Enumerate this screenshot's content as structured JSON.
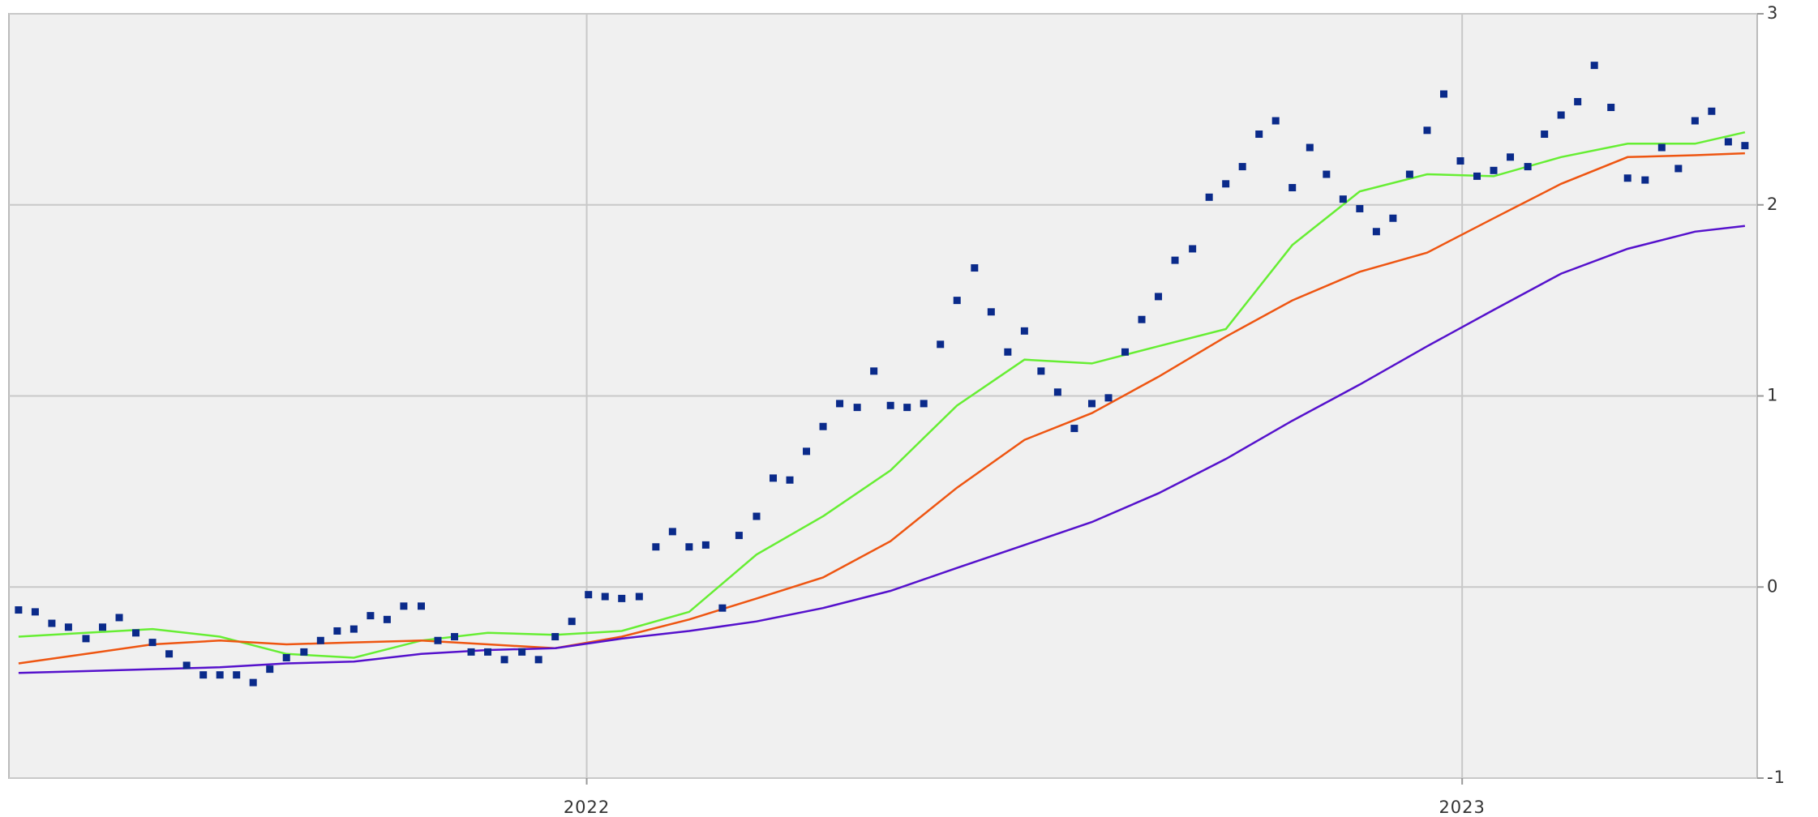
{
  "chart_data": {
    "type": "scatter",
    "xlim": [
      2021.34,
      2023.337
    ],
    "xticks": [
      2022,
      2023
    ],
    "ylim": [
      -1,
      3
    ],
    "yticks": [
      -1,
      0,
      1,
      2,
      3
    ],
    "grid": true,
    "series": [
      {
        "type": "scatter",
        "color": "#0a2a8a",
        "x": [
          2021.351,
          2021.37,
          2021.389,
          2021.408,
          2021.428,
          2021.447,
          2021.466,
          2021.485,
          2021.504,
          2021.523,
          2021.543,
          2021.562,
          2021.581,
          2021.6,
          2021.619,
          2021.638,
          2021.657,
          2021.677,
          2021.696,
          2021.715,
          2021.734,
          2021.753,
          2021.772,
          2021.791,
          2021.811,
          2021.83,
          2021.849,
          2021.868,
          2021.887,
          2021.906,
          2021.926,
          2021.945,
          2021.964,
          2021.983,
          2022.002,
          2022.021,
          2022.04,
          2022.06,
          2022.079,
          2022.098,
          2022.117,
          2022.136,
          2022.155,
          2022.174,
          2022.194,
          2022.213,
          2022.232,
          2022.251,
          2022.27,
          2022.289,
          2022.309,
          2022.328,
          2022.347,
          2022.366,
          2022.385,
          2022.404,
          2022.423,
          2022.443,
          2022.462,
          2022.481,
          2022.5,
          2022.519,
          2022.538,
          2022.557,
          2022.577,
          2022.596,
          2022.615,
          2022.634,
          2022.653,
          2022.672,
          2022.692,
          2022.711,
          2022.73,
          2022.749,
          2022.768,
          2022.787,
          2022.806,
          2022.826,
          2022.845,
          2022.864,
          2022.883,
          2022.902,
          2022.921,
          2022.94,
          2022.96,
          2022.979,
          2022.998,
          2023.017,
          2023.036,
          2023.055,
          2023.075,
          2023.094,
          2023.113,
          2023.132,
          2023.151,
          2023.17,
          2023.189,
          2023.209,
          2023.228,
          2023.247,
          2023.266,
          2023.285,
          2023.304,
          2023.323
        ],
        "values": [
          -0.12,
          -0.13,
          -0.19,
          -0.21,
          -0.27,
          -0.21,
          -0.16,
          -0.24,
          -0.29,
          -0.35,
          -0.41,
          -0.46,
          -0.46,
          -0.46,
          -0.5,
          -0.43,
          -0.37,
          -0.34,
          -0.28,
          -0.23,
          -0.22,
          -0.15,
          -0.17,
          -0.1,
          -0.1,
          -0.28,
          -0.26,
          -0.34,
          -0.34,
          -0.38,
          -0.34,
          -0.38,
          -0.26,
          -0.18,
          -0.04,
          -0.05,
          -0.06,
          -0.05,
          0.21,
          0.29,
          0.21,
          0.22,
          -0.11,
          0.27,
          0.37,
          0.57,
          0.56,
          0.71,
          0.84,
          0.96,
          0.94,
          1.13,
          0.95,
          0.94,
          0.96,
          1.27,
          1.5,
          1.67,
          1.44,
          1.23,
          1.34,
          1.13,
          1.02,
          0.83,
          0.96,
          0.99,
          1.23,
          1.4,
          1.52,
          1.71,
          1.77,
          2.04,
          2.11,
          2.2,
          2.37,
          2.44,
          2.09,
          2.3,
          2.16,
          2.03,
          1.98,
          1.86,
          1.93,
          2.16,
          2.39,
          2.58,
          2.23,
          2.15,
          2.18,
          2.25,
          2.2,
          2.37,
          2.47,
          2.54,
          2.73,
          2.51,
          2.14,
          2.13,
          2.3,
          2.19,
          2.44,
          2.49,
          2.33,
          2.31
        ]
      },
      {
        "type": "line",
        "color": "#66ee33",
        "x": [
          2021.351,
          2021.428,
          2021.504,
          2021.581,
          2021.657,
          2021.734,
          2021.811,
          2021.887,
          2021.964,
          2022.04,
          2022.117,
          2022.194,
          2022.27,
          2022.347,
          2022.423,
          2022.5,
          2022.577,
          2022.653,
          2022.73,
          2022.806,
          2022.883,
          2022.96,
          2023.036,
          2023.113,
          2023.189,
          2023.266,
          2023.323
        ],
        "values": [
          -0.26,
          -0.24,
          -0.22,
          -0.26,
          -0.35,
          -0.37,
          -0.28,
          -0.24,
          -0.25,
          -0.23,
          -0.13,
          0.17,
          0.37,
          0.61,
          0.95,
          1.19,
          1.17,
          1.26,
          1.35,
          1.79,
          2.07,
          2.16,
          2.15,
          2.25,
          2.32,
          2.32,
          2.38
        ]
      },
      {
        "type": "line",
        "color": "#ee5511",
        "x": [
          2021.351,
          2021.428,
          2021.504,
          2021.581,
          2021.657,
          2021.734,
          2021.811,
          2021.887,
          2021.964,
          2022.04,
          2022.117,
          2022.194,
          2022.27,
          2022.347,
          2022.423,
          2022.5,
          2022.577,
          2022.653,
          2022.73,
          2022.806,
          2022.883,
          2022.96,
          2023.036,
          2023.113,
          2023.189,
          2023.266,
          2023.323
        ],
        "values": [
          -0.4,
          -0.35,
          -0.3,
          -0.28,
          -0.3,
          -0.29,
          -0.28,
          -0.3,
          -0.32,
          -0.26,
          -0.17,
          -0.06,
          0.05,
          0.24,
          0.52,
          0.77,
          0.91,
          1.1,
          1.31,
          1.5,
          1.65,
          1.75,
          1.93,
          2.11,
          2.25,
          2.26,
          2.27
        ]
      },
      {
        "type": "line",
        "color": "#5511cc",
        "x": [
          2021.351,
          2021.428,
          2021.504,
          2021.581,
          2021.657,
          2021.734,
          2021.811,
          2021.887,
          2021.964,
          2022.04,
          2022.117,
          2022.194,
          2022.27,
          2022.347,
          2022.423,
          2022.5,
          2022.577,
          2022.653,
          2022.73,
          2022.806,
          2022.883,
          2022.96,
          2023.036,
          2023.113,
          2023.189,
          2023.266,
          2023.323
        ],
        "values": [
          -0.45,
          -0.44,
          -0.43,
          -0.42,
          -0.4,
          -0.39,
          -0.35,
          -0.33,
          -0.32,
          -0.27,
          -0.23,
          -0.18,
          -0.11,
          -0.02,
          0.1,
          0.22,
          0.34,
          0.49,
          0.67,
          0.87,
          1.06,
          1.26,
          1.45,
          1.64,
          1.77,
          1.86,
          1.89
        ]
      }
    ]
  }
}
